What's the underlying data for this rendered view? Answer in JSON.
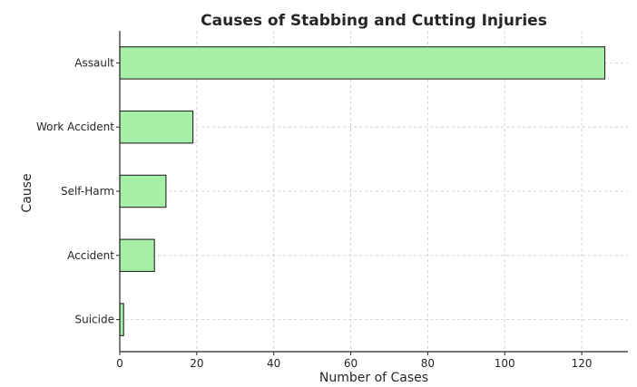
{
  "chart_data": {
    "type": "bar",
    "orientation": "horizontal",
    "title": "Causes of Stabbing and Cutting Injuries",
    "xlabel": "Number of Cases",
    "ylabel": "Cause",
    "categories": [
      "Assault",
      "Work Accident",
      "Self-Harm",
      "Accident",
      "Suicide"
    ],
    "values": [
      126,
      19,
      12,
      9,
      1
    ],
    "xlim": [
      0,
      132
    ],
    "xticks": [
      0,
      20,
      40,
      60,
      80,
      100,
      120
    ],
    "grid": true,
    "bar_color": "#a6efa6",
    "edge_color": "#262626"
  }
}
